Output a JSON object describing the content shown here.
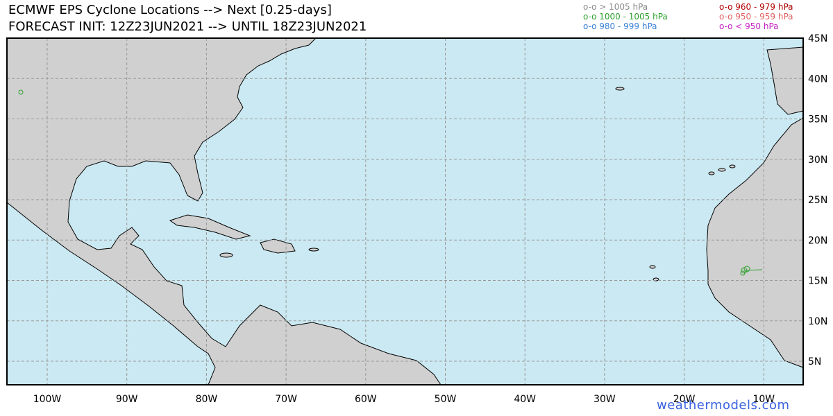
{
  "header": {
    "title": "ECMWF EPS Cyclone Locations --> Next [0.25-days]",
    "subtitle": "FORECAST INIT: 12Z23JUN2021 --> UNTIL 18Z23JUN2021"
  },
  "legend": [
    {
      "label": "o-o > 1005 hPa",
      "color": "#8c8c8c"
    },
    {
      "label": "o-o 1000 - 1005 hPa",
      "color": "#2ca02c"
    },
    {
      "label": "o-o 980 - 999 hPa",
      "color": "#3a7fd5"
    },
    {
      "label": "o-o 960 - 979 hPa",
      "color": "#b00000"
    },
    {
      "label": "o-o 950 - 959 hPa",
      "color": "#e06060"
    },
    {
      "label": "o-o < 950 hPa",
      "color": "#c020c0"
    }
  ],
  "map": {
    "lon_labels": [
      "100W",
      "90W",
      "80W",
      "70W",
      "60W",
      "50W",
      "40W",
      "30W",
      "20W",
      "10W"
    ],
    "lat_labels": [
      "45N",
      "40N",
      "35N",
      "30N",
      "25N",
      "20N",
      "15N",
      "10N",
      "5N"
    ]
  },
  "watermark": "weathermodels.com"
}
